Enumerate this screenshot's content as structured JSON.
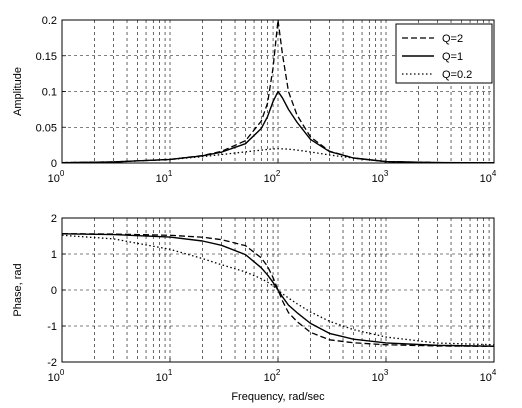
{
  "chart_data": [
    {
      "type": "line",
      "title": "",
      "xlabel": "",
      "ylabel": "Amplitude",
      "xscale": "log",
      "xlim": [
        1,
        10000
      ],
      "ylim": [
        0,
        0.2
      ],
      "xticks": [
        {
          "base": "10",
          "exp": "0"
        },
        {
          "base": "10",
          "exp": "1"
        },
        {
          "base": "10",
          "exp": "2"
        },
        {
          "base": "10",
          "exp": "3"
        },
        {
          "base": "10",
          "exp": "4"
        }
      ],
      "yticks": [
        "0",
        "0.05",
        "0.1",
        "0.15",
        "0.2"
      ],
      "grid": true,
      "legend": "top-right",
      "x": [
        1,
        3,
        10,
        20,
        30,
        50,
        70,
        80,
        90,
        100,
        110,
        125,
        150,
        200,
        300,
        500,
        1000,
        3000,
        10000
      ],
      "series": [
        {
          "name": "Q=2",
          "style": "dashed",
          "values": [
            0.0005,
            0.0015,
            0.005,
            0.0104,
            0.0163,
            0.0312,
            0.0586,
            0.0836,
            0.133,
            0.2,
            0.152,
            0.1,
            0.067,
            0.0364,
            0.0165,
            0.007,
            0.002,
            0.0006,
            0.0002
          ]
        },
        {
          "name": "Q=1",
          "style": "solid",
          "values": [
            0.0005,
            0.0015,
            0.005,
            0.01,
            0.0152,
            0.027,
            0.0483,
            0.0648,
            0.086,
            0.1,
            0.091,
            0.075,
            0.057,
            0.033,
            0.016,
            0.007,
            0.002,
            0.0006,
            0.0002
          ]
        },
        {
          "name": "Q=0.2",
          "style": "dotted",
          "values": [
            0.0005,
            0.0015,
            0.0049,
            0.0089,
            0.0118,
            0.0156,
            0.018,
            0.019,
            0.0196,
            0.02,
            0.0198,
            0.0194,
            0.0181,
            0.0154,
            0.0112,
            0.0068,
            0.002,
            0.0006,
            0.0002
          ]
        }
      ]
    },
    {
      "type": "line",
      "title": "",
      "xlabel": "Frequency, rad/sec",
      "ylabel": "Phase, rad",
      "xscale": "log",
      "xlim": [
        1,
        10000
      ],
      "ylim": [
        -2,
        2
      ],
      "xticks": [
        {
          "base": "10",
          "exp": "0"
        },
        {
          "base": "10",
          "exp": "1"
        },
        {
          "base": "10",
          "exp": "2"
        },
        {
          "base": "10",
          "exp": "3"
        },
        {
          "base": "10",
          "exp": "4"
        }
      ],
      "yticks": [
        "-2",
        "-1",
        "0",
        "1",
        "2"
      ],
      "grid": true,
      "x": [
        1,
        3,
        10,
        20,
        30,
        50,
        70,
        80,
        90,
        100,
        110,
        125,
        150,
        200,
        300,
        500,
        1000,
        3000,
        10000
      ],
      "series": [
        {
          "name": "Q=2",
          "style": "dashed",
          "values": [
            1.565,
            1.553,
            1.52,
            1.466,
            1.398,
            1.231,
            0.893,
            0.656,
            0.346,
            0.0,
            -0.302,
            -0.628,
            -0.876,
            -1.176,
            -1.384,
            -1.466,
            -1.521,
            -1.554,
            -1.565
          ]
        },
        {
          "name": "Q=1",
          "style": "solid",
          "values": [
            1.56,
            1.54,
            1.47,
            1.361,
            1.241,
            0.983,
            0.617,
            0.419,
            0.21,
            0.0,
            -0.19,
            -0.42,
            -0.629,
            -0.927,
            -1.206,
            -1.366,
            -1.47,
            -1.538,
            -1.56
          ]
        },
        {
          "name": "Q=0.2",
          "style": "dotted",
          "values": [
            1.52,
            1.42,
            1.13,
            0.873,
            0.702,
            0.503,
            0.315,
            0.218,
            0.116,
            0.0,
            -0.104,
            -0.222,
            -0.382,
            -0.611,
            -0.869,
            -1.101,
            -1.307,
            -1.474,
            -1.52
          ]
        }
      ]
    }
  ]
}
